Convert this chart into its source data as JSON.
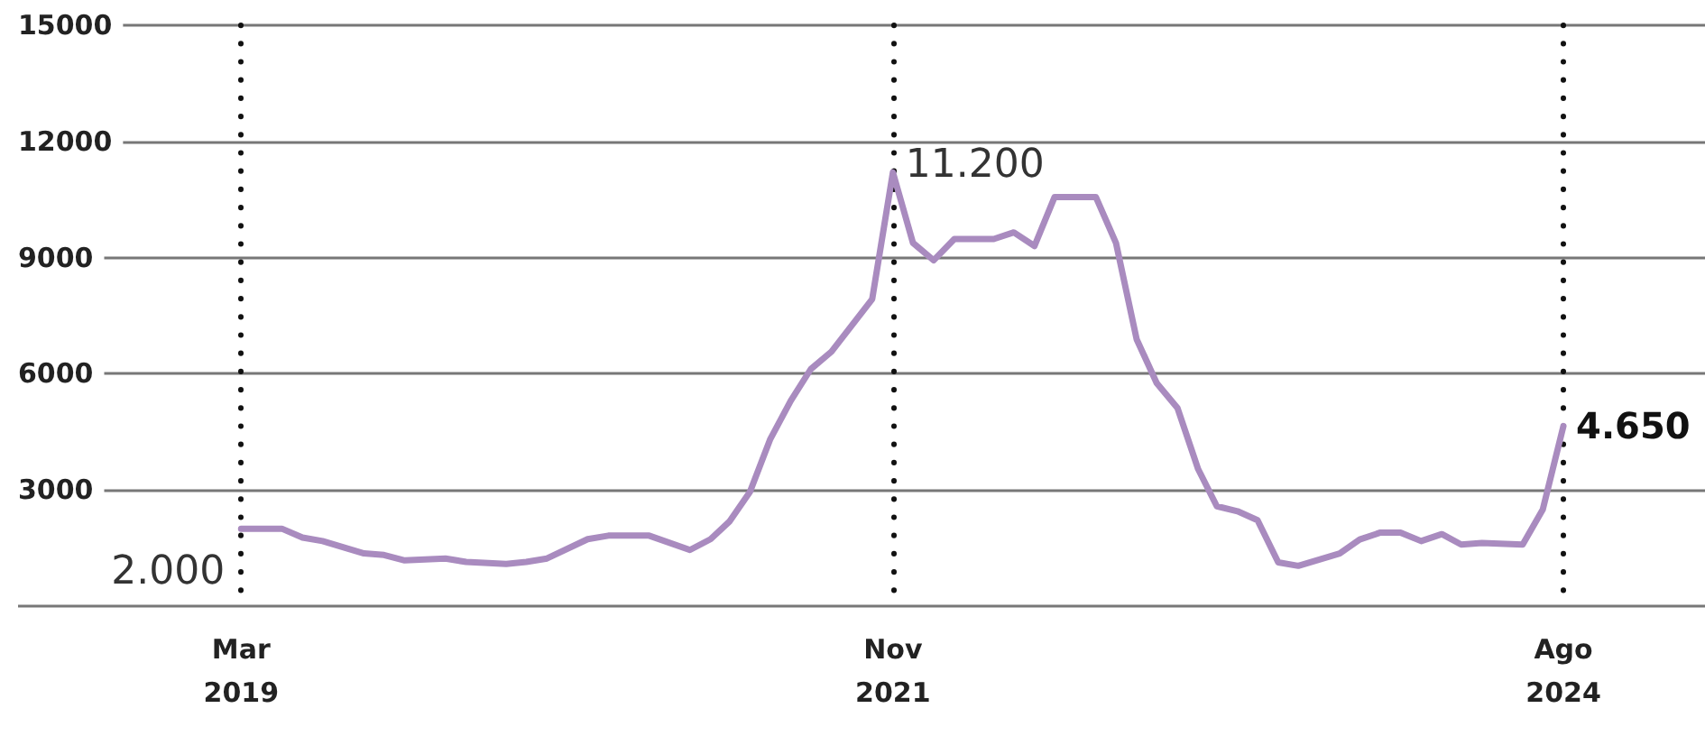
{
  "chart_data": {
    "type": "line",
    "x": [
      "2019-03",
      "2019-05",
      "2019-06",
      "2019-07",
      "2019-09",
      "2019-10",
      "2019-11",
      "2020-01",
      "2020-02",
      "2020-04",
      "2020-05",
      "2020-06",
      "2020-08",
      "2020-09",
      "2020-11",
      "2021-01",
      "2021-02",
      "2021-03",
      "2021-04",
      "2021-05",
      "2021-06",
      "2021-07",
      "2021-08",
      "2021-10",
      "2021-11",
      "2021-12",
      "2022-01",
      "2022-02",
      "2022-04",
      "2022-05",
      "2022-06",
      "2022-07",
      "2022-09",
      "2022-10",
      "2022-11",
      "2022-12",
      "2023-01",
      "2023-02",
      "2023-03",
      "2023-04",
      "2023-05",
      "2023-06",
      "2023-07",
      "2023-09",
      "2023-10",
      "2023-11",
      "2023-12",
      "2024-01",
      "2024-02",
      "2024-03",
      "2024-04",
      "2024-06",
      "2024-07",
      "2024-08"
    ],
    "series": [
      {
        "color": "#a98bbf",
        "values": [
          2000,
          2000,
          1770,
          1680,
          1360,
          1320,
          1180,
          1230,
          1140,
          1090,
          1140,
          1230,
          1730,
          1820,
          1820,
          1450,
          1730,
          2180,
          2950,
          4300,
          5300,
          6120,
          6570,
          7930,
          11200,
          9380,
          8930,
          9480,
          9480,
          9650,
          9300,
          10560,
          10560,
          9380,
          6890,
          5760,
          5120,
          3540,
          2580,
          2450,
          2220,
          1130,
          1040,
          1360,
          1720,
          1900,
          1900,
          1680,
          1860,
          1590,
          1630,
          1590,
          2490,
          4650
        ]
      }
    ],
    "xlim": [
      "2018-04",
      "2025-03"
    ],
    "xticks": [
      {
        "value": "2019-03",
        "label": "Mar\n2019"
      },
      {
        "value": "2021-11",
        "label": "Nov\n2021"
      },
      {
        "value": "2024-08",
        "label": "Ago\n2024"
      }
    ],
    "ylim": [
      0,
      15000
    ],
    "yticks": [
      {
        "value": 0,
        "label": null
      },
      3000,
      6000,
      9000,
      12000,
      15000
    ],
    "annotations": [
      {
        "text": "2.000",
        "x": "2019-03",
        "y": 2000
      },
      {
        "text": "11.200",
        "x": "2021-11",
        "y": 11200
      },
      {
        "text": "4.650",
        "x": "2024-08",
        "y": 4650
      }
    ],
    "grid": true,
    "marker": "none",
    "line_style": "solid"
  }
}
